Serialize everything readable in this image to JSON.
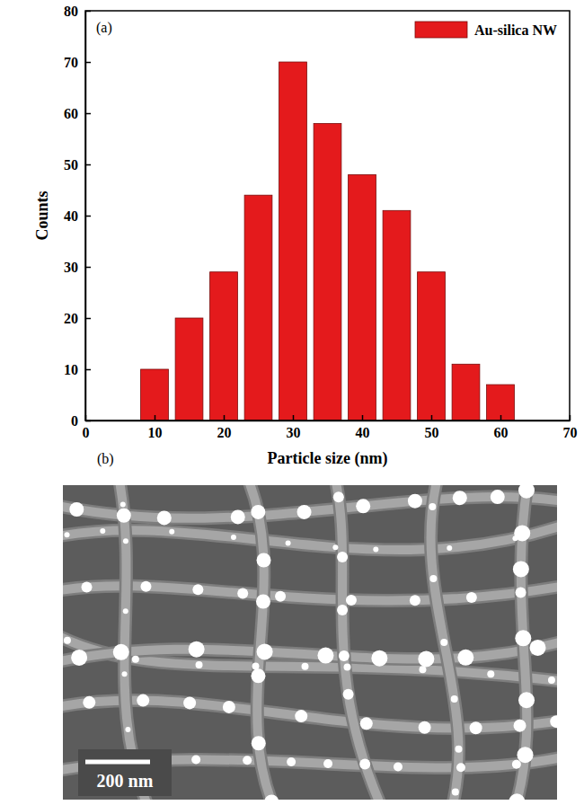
{
  "chart_data": {
    "type": "bar",
    "annotations": [
      "(a)"
    ],
    "x": [
      10,
      15,
      20,
      25,
      30,
      35,
      40,
      45,
      50,
      55,
      60
    ],
    "series": [
      {
        "name": "Au-silica NW",
        "color": "#e41a1c",
        "values": [
          10,
          20,
          29,
          44,
          70,
          58,
          48,
          41,
          29,
          11,
          7
        ]
      }
    ],
    "x_label": "Particle size (nm)",
    "y_label": "Counts",
    "xlim": [
      0,
      70
    ],
    "xticks": [
      0,
      10,
      20,
      30,
      40,
      50,
      60,
      70
    ],
    "ylim": [
      0,
      80
    ],
    "yticks": [
      0,
      10,
      20,
      30,
      40,
      50,
      60,
      70,
      80
    ],
    "grid": false,
    "legend": "top-right"
  },
  "image": {
    "panel_label": "(b)",
    "scale_bar_label": "200 nm"
  }
}
